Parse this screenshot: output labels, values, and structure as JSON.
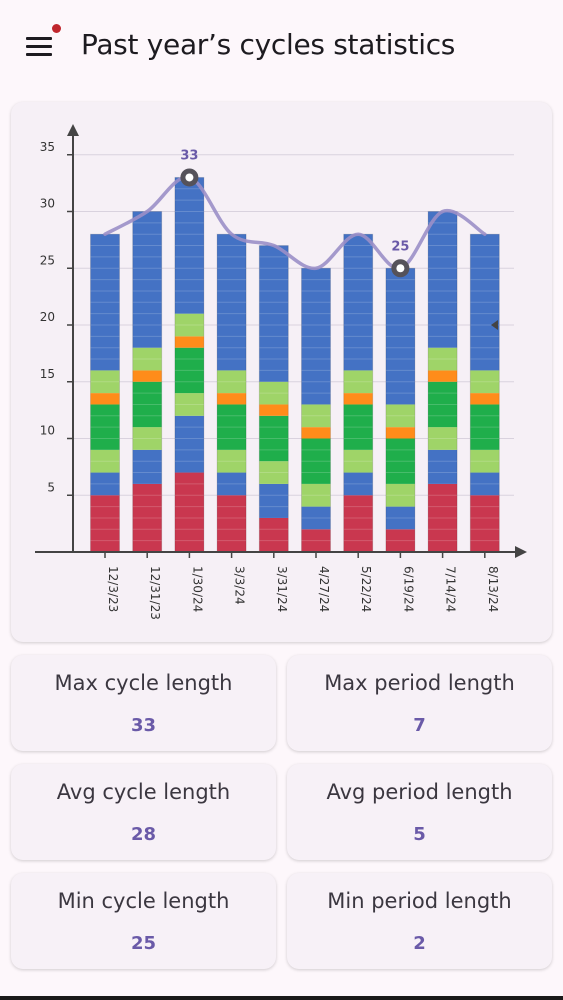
{
  "header": {
    "title": "Past year’s cycles statistics",
    "menu_icon": "hamburger-menu-icon",
    "notification_dot_color": "#c0262d"
  },
  "chart_data": {
    "type": "bar",
    "stacked": true,
    "categories": [
      "12/3/23",
      "12/31/23",
      "1/30/24",
      "3/3/24",
      "3/31/24",
      "4/27/24",
      "5/22/24",
      "6/19/24",
      "7/14/24",
      "8/13/24"
    ],
    "series": [
      {
        "color": "#c9374f",
        "values": [
          5,
          6,
          7,
          5,
          3,
          2,
          5,
          2,
          6,
          5
        ]
      },
      {
        "color": "#4472c4",
        "values": [
          2,
          3,
          5,
          2,
          3,
          2,
          2,
          2,
          3,
          2
        ]
      },
      {
        "color": "#9fd468",
        "values": [
          2,
          2,
          2,
          2,
          2,
          2,
          2,
          2,
          2,
          2
        ]
      },
      {
        "color": "#1fae4b",
        "values": [
          4,
          4,
          4,
          4,
          4,
          4,
          4,
          4,
          4,
          4
        ]
      },
      {
        "color": "#ff8c1a",
        "values": [
          1,
          1,
          1,
          1,
          1,
          1,
          1,
          1,
          1,
          1
        ]
      },
      {
        "color": "#9fd468",
        "values": [
          2,
          2,
          2,
          2,
          2,
          2,
          2,
          2,
          2,
          2
        ]
      },
      {
        "color": "#4472c4",
        "values": [
          12,
          12,
          12,
          12,
          12,
          12,
          12,
          12,
          12,
          12
        ]
      }
    ],
    "totals": [
      28,
      30,
      33,
      28,
      27,
      25,
      28,
      25,
      30,
      28
    ],
    "trend_line_color": "#9b8fc8",
    "highlights": [
      {
        "label": "33",
        "category": "1/30/24",
        "value": 33
      },
      {
        "label": "25",
        "category": "6/19/24",
        "value": 25
      }
    ],
    "ylim": [
      0,
      35
    ],
    "yticks": [
      5,
      10,
      15,
      20,
      25,
      30,
      35
    ],
    "grid": true,
    "marker_value": 20
  },
  "stats": [
    {
      "label": "Max cycle length",
      "value": "33"
    },
    {
      "label": "Max period length",
      "value": "7"
    },
    {
      "label": "Avg cycle length",
      "value": "28"
    },
    {
      "label": "Avg period length",
      "value": "5"
    },
    {
      "label": "Min cycle length",
      "value": "25"
    },
    {
      "label": "Min period length",
      "value": "2"
    }
  ]
}
